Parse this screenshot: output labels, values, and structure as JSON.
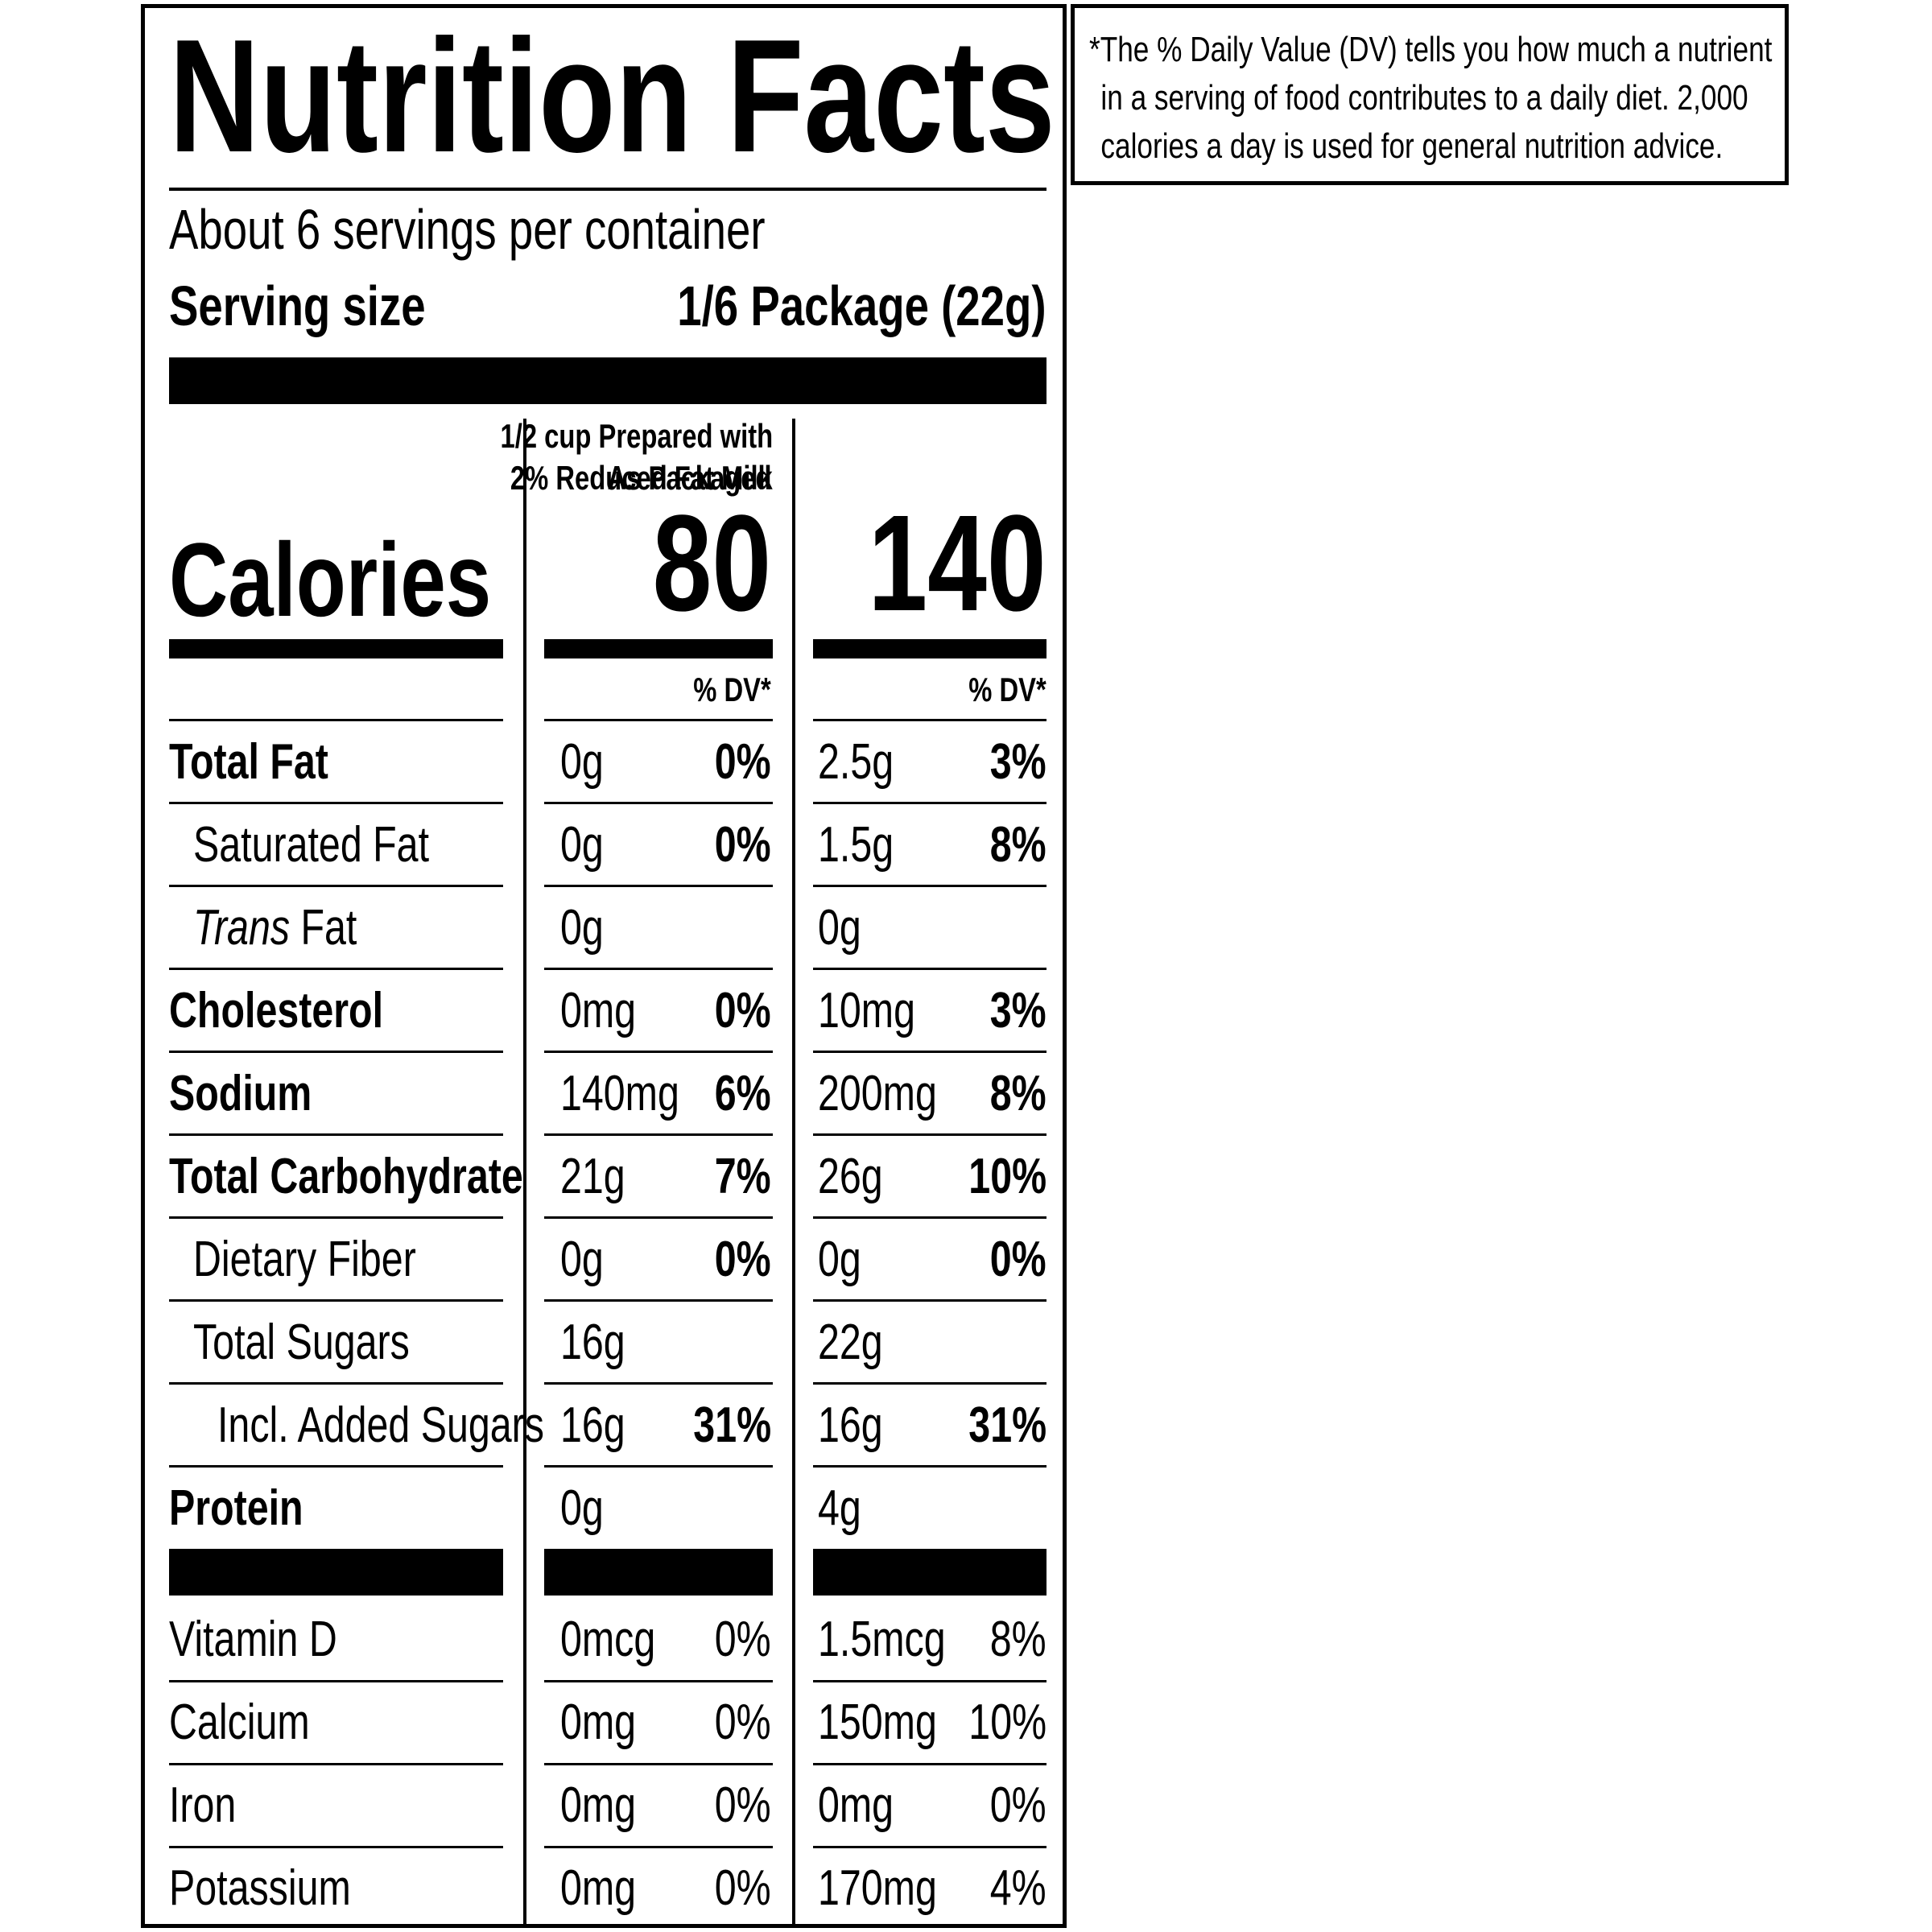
{
  "title": "Nutrition Facts",
  "servings_per_container": "About 6 servings per container",
  "serving_size_label": "Serving size",
  "serving_size_value": "1/6 Package (22g)",
  "calories_label": "Calories",
  "columns": [
    {
      "header_line1": "",
      "header_line2": "As Packaged",
      "calories": "80",
      "dv_header": "% DV*"
    },
    {
      "header_line1": "1/2 cup Prepared with",
      "header_line2": "2% Reduced Fat Milk",
      "calories": "140",
      "dv_header": "% DV*"
    }
  ],
  "nutrients": [
    {
      "name": "Total Fat",
      "a_amt": "0g",
      "a_dv": "0%",
      "b_amt": "2.5g",
      "b_dv": "3%"
    },
    {
      "name": "Saturated Fat",
      "a_amt": "0g",
      "a_dv": "0%",
      "b_amt": "1.5g",
      "b_dv": "8%"
    },
    {
      "name_italic": "Trans",
      "name": " Fat",
      "a_amt": "0g",
      "a_dv": "",
      "b_amt": "0g",
      "b_dv": ""
    },
    {
      "name": "Cholesterol",
      "a_amt": "0mg",
      "a_dv": "0%",
      "b_amt": "10mg",
      "b_dv": "3%"
    },
    {
      "name": "Sodium",
      "a_amt": "140mg",
      "a_dv": "6%",
      "b_amt": "200mg",
      "b_dv": "8%"
    },
    {
      "name": "Total Carbohydrate",
      "a_amt": "21g",
      "a_dv": "7%",
      "b_amt": "26g",
      "b_dv": "10%"
    },
    {
      "name": "Dietary Fiber",
      "a_amt": "0g",
      "a_dv": "0%",
      "b_amt": "0g",
      "b_dv": "0%"
    },
    {
      "name": "Total Sugars",
      "a_amt": "16g",
      "a_dv": "",
      "b_amt": "22g",
      "b_dv": ""
    },
    {
      "name": "Incl. Added Sugars",
      "a_amt": "16g",
      "a_dv": "31%",
      "b_amt": "16g",
      "b_dv": "31%"
    },
    {
      "name": "Protein",
      "a_amt": "0g",
      "a_dv": "",
      "b_amt": "4g",
      "b_dv": ""
    }
  ],
  "micronutrients": [
    {
      "name": "Vitamin D",
      "a_amt": "0mcg",
      "a_dv": "0%",
      "b_amt": "1.5mcg",
      "b_dv": "8%"
    },
    {
      "name": "Calcium",
      "a_amt": "0mg",
      "a_dv": "0%",
      "b_amt": "150mg",
      "b_dv": "10%"
    },
    {
      "name": "Iron",
      "a_amt": "0mg",
      "a_dv": "0%",
      "b_amt": "0mg",
      "b_dv": "0%"
    },
    {
      "name": "Potassium",
      "a_amt": "0mg",
      "a_dv": "0%",
      "b_amt": "170mg",
      "b_dv": "4%"
    }
  ],
  "footnote": {
    "line1": "*The % Daily Value (DV) tells you how much a nutrient",
    "line2": "in a serving of food contributes to a daily diet. 2,000",
    "line3": "calories a day is used for general nutrition advice."
  }
}
